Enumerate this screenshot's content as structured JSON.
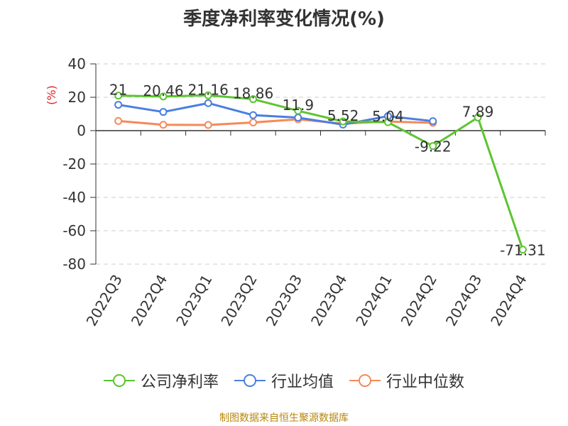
{
  "chart_data": {
    "type": "line",
    "title": "季度净利率变化情况(%)",
    "ylabel": "(%)",
    "xlabel": "",
    "ylim": [
      -80,
      40
    ],
    "yticks": [
      40,
      20,
      0,
      -20,
      -40,
      -60,
      -80
    ],
    "grid": true,
    "legend_position": "bottom",
    "categories": [
      "2022Q3",
      "2022Q4",
      "2023Q1",
      "2023Q2",
      "2023Q3",
      "2023Q4",
      "2024Q1",
      "2024Q2",
      "2024Q3",
      "2024Q4"
    ],
    "series": [
      {
        "name": "公司净利率",
        "color": "#5cc430",
        "values": [
          21,
          20.46,
          21.16,
          18.86,
          11.9,
          5.52,
          5.04,
          -9.22,
          7.89,
          -71.31
        ],
        "labels": [
          "21",
          "20.46",
          "21.16",
          "18.86",
          "11.9",
          "5.52",
          "5.04",
          "-9.22",
          "7.89",
          "-71.31"
        ]
      },
      {
        "name": "行业均值",
        "color": "#4a7fe0",
        "values": [
          15.5,
          11.2,
          16.5,
          9.3,
          7.8,
          3.6,
          8.7,
          5.7,
          null,
          null
        ]
      },
      {
        "name": "行业中位数",
        "color": "#f5895a",
        "values": [
          5.8,
          3.5,
          3.4,
          4.9,
          6.8,
          4.2,
          5.5,
          4.7,
          null,
          null
        ]
      }
    ]
  },
  "source_note": "制图数据来自恒生聚源数据库"
}
